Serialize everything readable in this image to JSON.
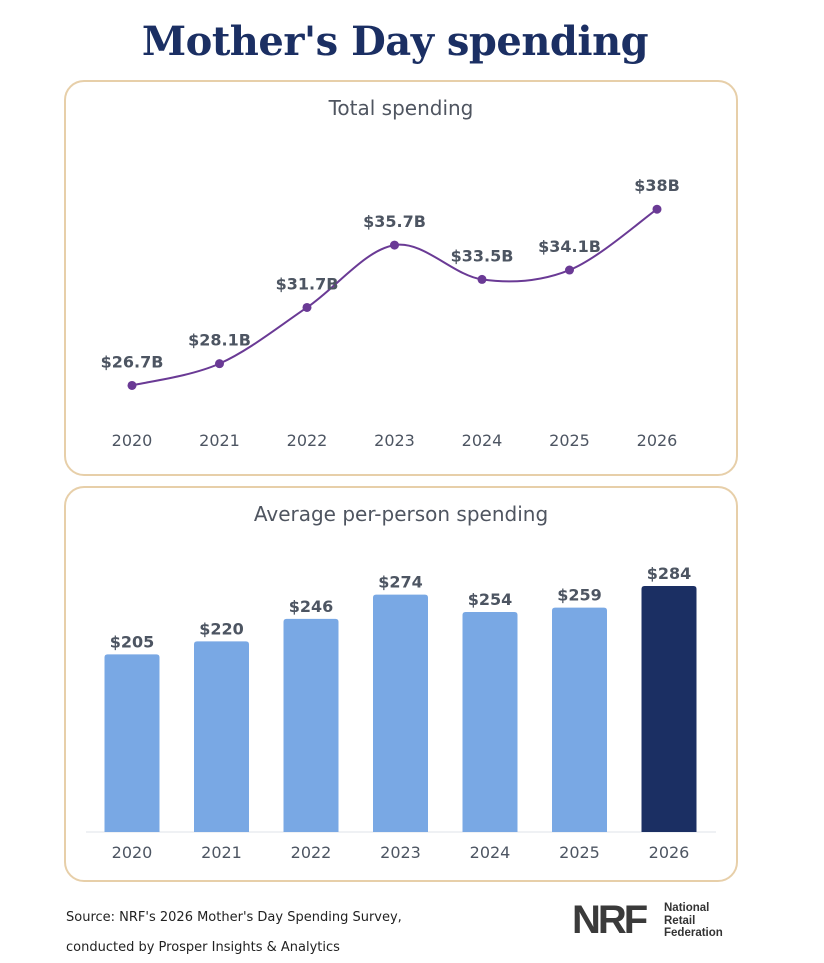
{
  "page": {
    "title": "Mother's Day spending"
  },
  "chart_data": [
    {
      "type": "line",
      "title": "Total spending",
      "categories": [
        "2020",
        "2021",
        "2022",
        "2023",
        "2024",
        "2025",
        "2026"
      ],
      "values": [
        26.7,
        28.1,
        31.7,
        35.7,
        33.5,
        34.1,
        38
      ],
      "data_labels": [
        "$26.7B",
        "$28.1B",
        "$31.7B",
        "$35.7B",
        "$33.5B",
        "$34.1B",
        "$38B"
      ],
      "unit": "B",
      "ylim": [
        25,
        40
      ],
      "color": "#6a3a95",
      "grid": false,
      "legend": "none"
    },
    {
      "type": "bar",
      "title": "Average per-person spending",
      "categories": [
        "2020",
        "2021",
        "2022",
        "2023",
        "2024",
        "2025",
        "2026"
      ],
      "values": [
        205,
        220,
        246,
        274,
        254,
        259,
        284
      ],
      "data_labels": [
        "$205",
        "$220",
        "$246",
        "$274",
        "$254",
        "$259",
        "$284"
      ],
      "ylim": [
        0,
        284
      ],
      "bar_color": "#79a8e4",
      "highlight_color": "#1b2f63",
      "highlight_index": 6,
      "grid": false,
      "legend": "none"
    }
  ],
  "footer": {
    "source_line1": "Source: NRF's 2026 Mother's Day Spending Survey,",
    "source_line2": "conducted by Prosper Insights & Analytics",
    "logo_mark": "NRF",
    "logo_line1": "National",
    "logo_line2": "Retail",
    "logo_line3": "Federation"
  }
}
